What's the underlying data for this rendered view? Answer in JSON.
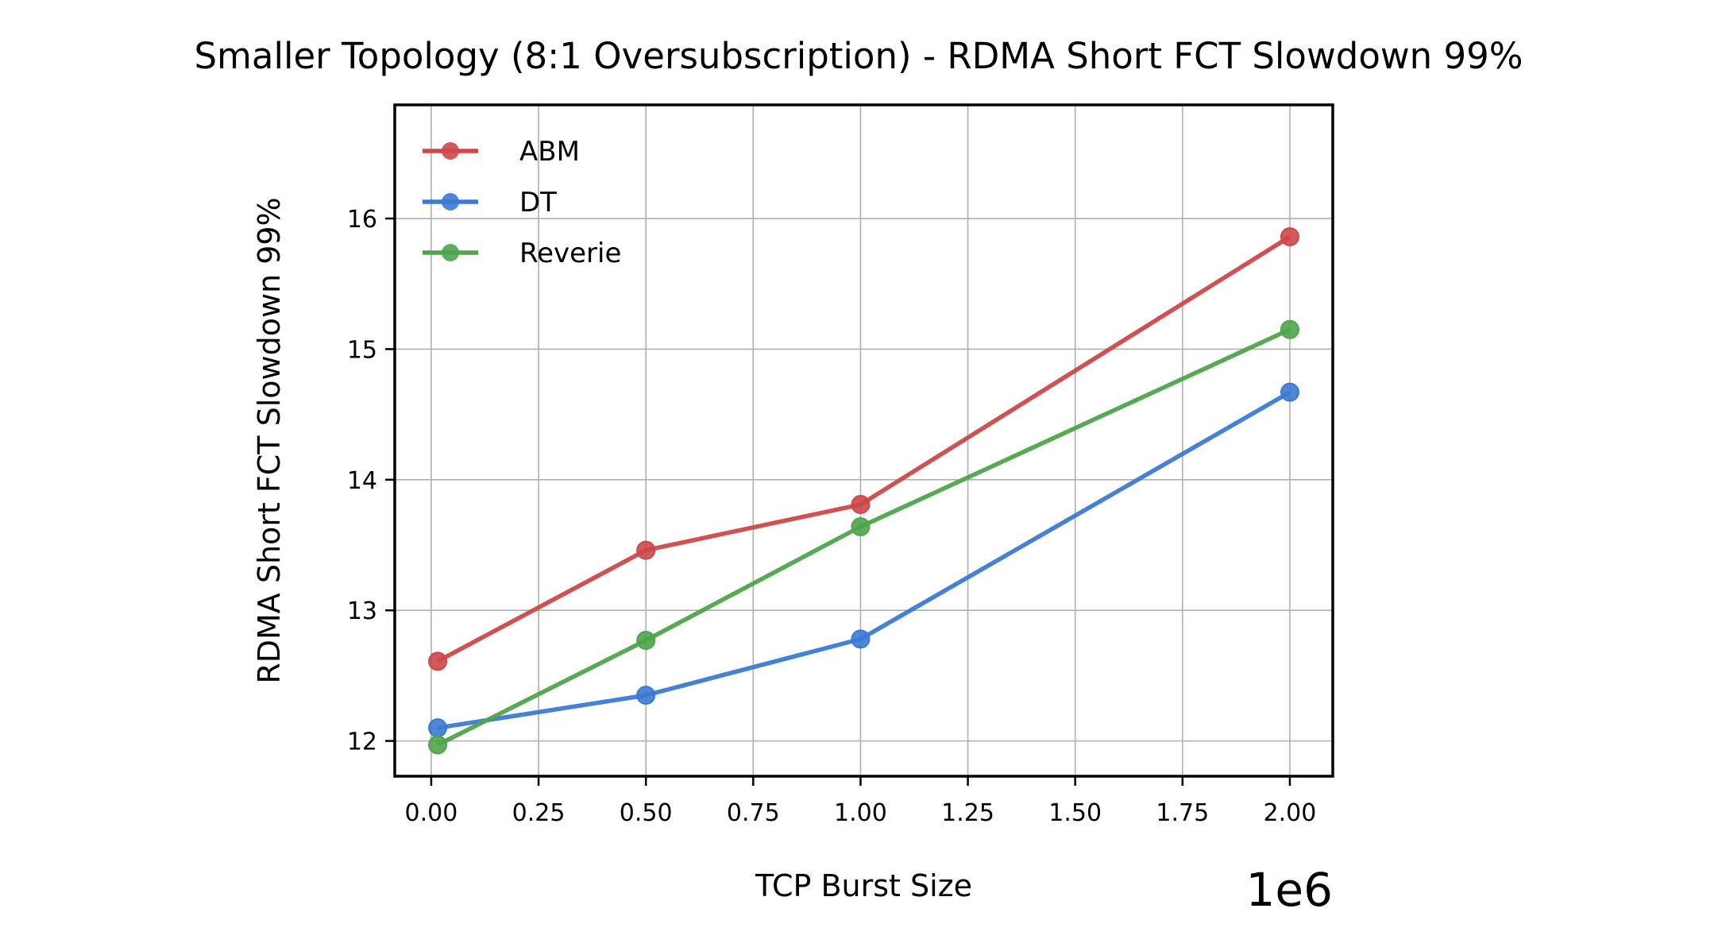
{
  "chart_data": {
    "type": "line",
    "title": "Smaller Topology (8:1 Oversubscription) - RDMA Short FCT Slowdown 99%",
    "xlabel": "TCP Burst Size",
    "ylabel": "RDMA Short FCT Slowdown 99%",
    "x_offset_label": "1e6",
    "xlim": [
      -0.085,
      2.1
    ],
    "ylim": [
      11.73,
      16.87
    ],
    "xticks": [
      0.0,
      0.25,
      0.5,
      0.75,
      1.0,
      1.25,
      1.5,
      1.75,
      2.0
    ],
    "xtick_labels": [
      "0.00",
      "0.25",
      "0.50",
      "0.75",
      "1.00",
      "1.25",
      "1.50",
      "1.75",
      "2.00"
    ],
    "yticks": [
      12,
      13,
      14,
      15,
      16
    ],
    "ytick_labels": [
      "12",
      "13",
      "14",
      "15",
      "16"
    ],
    "grid": true,
    "legend_position": "upper-left",
    "series": [
      {
        "name": "ABM",
        "color": "#cd4848",
        "x": [
          0.015,
          0.5,
          1.0,
          2.0
        ],
        "y": [
          12.61,
          13.46,
          13.81,
          15.86
        ]
      },
      {
        "name": "DT",
        "color": "#3b7ad3",
        "x": [
          0.015,
          0.5,
          1.0,
          2.0
        ],
        "y": [
          12.1,
          12.35,
          12.78,
          14.67
        ]
      },
      {
        "name": "Reverie",
        "color": "#4ea54a",
        "x": [
          0.015,
          0.5,
          1.0,
          2.0
        ],
        "y": [
          11.97,
          12.77,
          13.64,
          15.15
        ]
      }
    ]
  }
}
